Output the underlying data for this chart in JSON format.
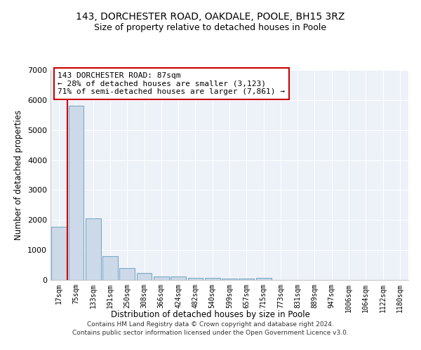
{
  "title_line1": "143, DORCHESTER ROAD, OAKDALE, POOLE, BH15 3RZ",
  "title_line2": "Size of property relative to detached houses in Poole",
  "xlabel": "Distribution of detached houses by size in Poole",
  "ylabel": "Number of detached properties",
  "categories": [
    "17sqm",
    "75sqm",
    "133sqm",
    "191sqm",
    "250sqm",
    "308sqm",
    "366sqm",
    "424sqm",
    "482sqm",
    "540sqm",
    "599sqm",
    "657sqm",
    "715sqm",
    "773sqm",
    "831sqm",
    "889sqm",
    "947sqm",
    "1006sqm",
    "1064sqm",
    "1122sqm",
    "1180sqm"
  ],
  "values": [
    1780,
    5800,
    2060,
    800,
    390,
    230,
    115,
    115,
    80,
    60,
    55,
    55,
    75,
    0,
    0,
    0,
    0,
    0,
    0,
    0,
    0
  ],
  "bar_color": "#ccd9e8",
  "bar_edge_color": "#7aaac8",
  "highlight_line_color": "#cc0000",
  "annotation_text": "143 DORCHESTER ROAD: 87sqm\n← 28% of detached houses are smaller (3,123)\n71% of semi-detached houses are larger (7,861) →",
  "annotation_box_color": "#ffffff",
  "annotation_box_edge": "#cc0000",
  "ylim": [
    0,
    7000
  ],
  "yticks": [
    0,
    1000,
    2000,
    3000,
    4000,
    5000,
    6000,
    7000
  ],
  "background_color": "#edf1f8",
  "grid_color": "#ffffff",
  "footer_line1": "Contains HM Land Registry data © Crown copyright and database right 2024.",
  "footer_line2": "Contains public sector information licensed under the Open Government Licence v3.0."
}
